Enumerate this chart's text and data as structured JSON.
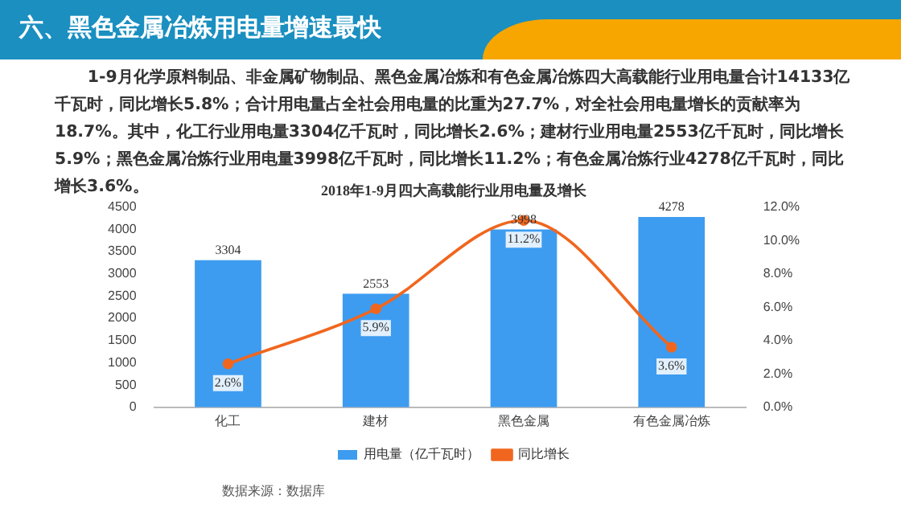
{
  "chart_data": {
    "type": "bar",
    "title": "2018年1-9月四大高载能行业用电量及增长",
    "annotations": [
      "六、黑色金属冶炼用电量增速最快",
      "1-9月化学原料制品、非金属矿物制品、黑色金属冶炼和有色金属冶炼四大高载能行业用电量合计14133亿千瓦时，同比增长5.8%；合计用电量占全社会用电量的比重为27.7%，对全社会用电量增长的贡献率为18.7%。其中，化工行业用电量3304亿千瓦时，同比增长2.6%；建材行业用电量2553亿千瓦时，同比增长5.9%；黑色金属冶炼行业用电量3998亿千瓦时，同比增长11.2%；有色金属冶炼行业4278亿千瓦时，同比增长3.6%。",
      "数据来源：数据库"
    ],
    "categories": [
      "化工",
      "建材",
      "黑色金属",
      "有色金属冶炼"
    ],
    "series": [
      {
        "name": "用电量（亿千瓦时）",
        "color": "#3d9cf0",
        "values": [
          3304,
          2553,
          3998,
          4278
        ],
        "value_labels": [
          "3304",
          "2553",
          "3998",
          "4278"
        ]
      },
      {
        "name": "同比增长",
        "type": "line",
        "axis": "y2",
        "color": "#f0661e",
        "values": [
          2.6,
          5.9,
          11.2,
          3.6
        ],
        "value_labels": [
          "2.6%",
          "5.9%",
          "11.2%",
          "3.6%"
        ],
        "marker": "circle"
      }
    ],
    "ylim": [
      0,
      4500
    ],
    "yticks": [
      0,
      500,
      1000,
      1500,
      2000,
      2500,
      3000,
      3500,
      4000,
      4500
    ],
    "y2lim": [
      0,
      12
    ],
    "y2ticks": [
      {
        "value": 0,
        "label": "0.0%"
      },
      {
        "value": 2,
        "label": "2.0%"
      },
      {
        "value": 4,
        "label": "4.0%"
      },
      {
        "value": 6,
        "label": "6.0%"
      },
      {
        "value": 8,
        "label": "8.0%"
      },
      {
        "value": 10,
        "label": "10.0%"
      },
      {
        "value": 12,
        "label": "12.0%"
      }
    ],
    "grid": false,
    "legend": "bottom"
  }
}
